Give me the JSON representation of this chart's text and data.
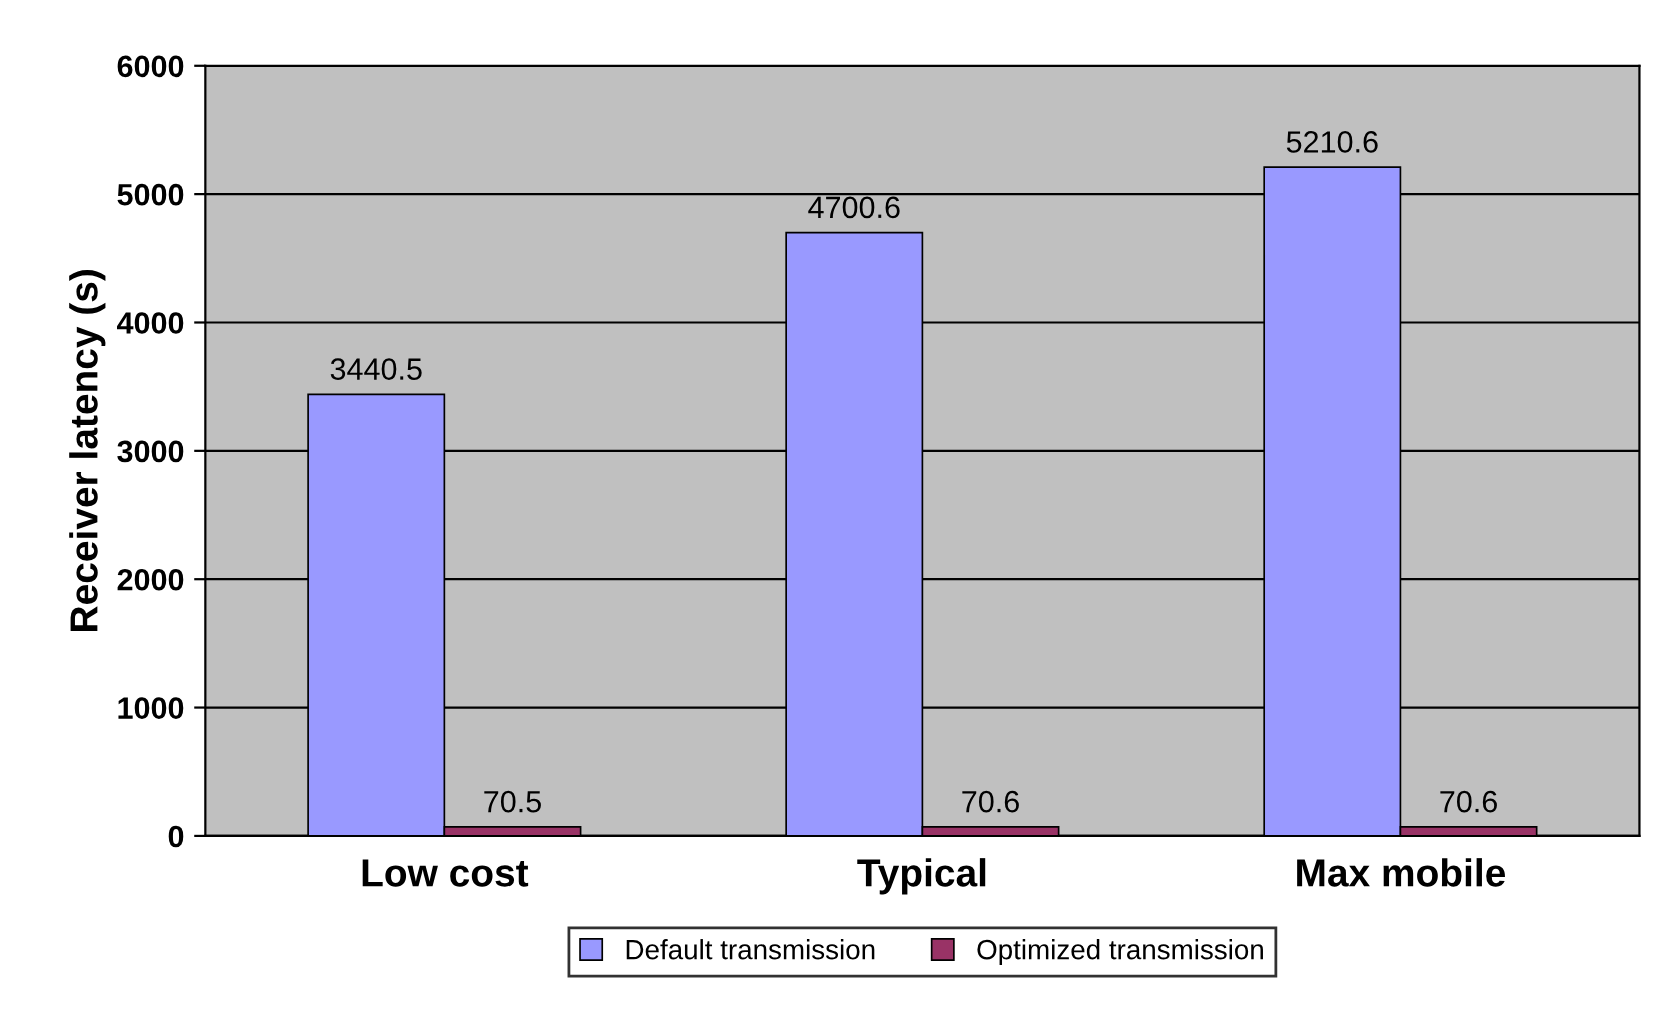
{
  "chart_data": {
    "type": "bar",
    "ylabel": "Receiver latency (s)",
    "categories": [
      "Low cost",
      "Typical",
      "Max mobile"
    ],
    "series": [
      {
        "name": "Default transmission",
        "color": "#9999ff",
        "values": [
          3440.5,
          4700.6,
          5210.6
        ]
      },
      {
        "name": "Optimized transmission",
        "color": "#993366",
        "values": [
          70.5,
          70.6,
          70.6
        ]
      }
    ],
    "ylim": [
      0,
      6000
    ],
    "yticks": [
      0,
      1000,
      2000,
      3000,
      4000,
      5000,
      6000
    ],
    "grid": "y",
    "legend": "bottom",
    "data_labels": true
  }
}
